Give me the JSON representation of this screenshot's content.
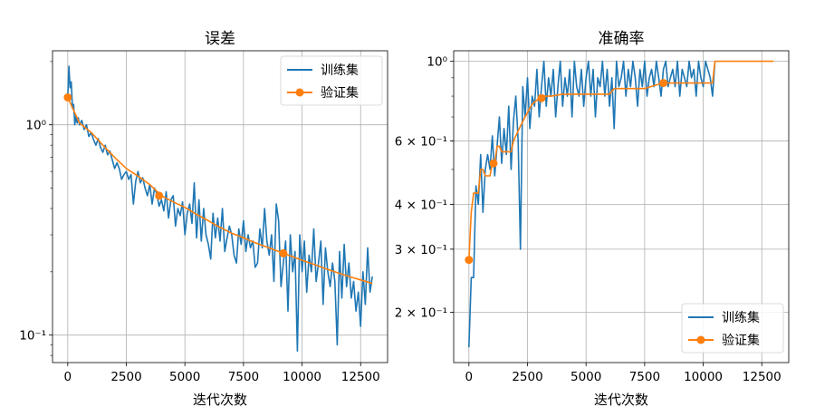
{
  "colors": {
    "train": "#1f77b4",
    "val": "#ff7f0e",
    "grid": "#b0b0b0"
  },
  "chart_data": [
    {
      "type": "line",
      "title": "误差",
      "xlabel": "迭代次数",
      "ylabel": "",
      "yscale": "log",
      "xlim": [
        -650,
        13650
      ],
      "ylim": [
        0.074,
        2.25
      ],
      "grid": true,
      "legend_position": "top-right",
      "x_ticks": [
        0,
        2500,
        5000,
        7500,
        10000,
        12500
      ],
      "x_tick_labels": [
        "0",
        "2500",
        "5000",
        "7500",
        "10000",
        "12500"
      ],
      "y_ticks": [
        1.0,
        0.1
      ],
      "y_tick_labels": [
        "10⁰",
        "10⁻¹"
      ],
      "series": [
        {
          "name": "训练集",
          "x": [
            0,
            50,
            100,
            150,
            200,
            250,
            300,
            350,
            400,
            450,
            500,
            600,
            700,
            800,
            900,
            1000,
            1100,
            1200,
            1300,
            1400,
            1500,
            1600,
            1700,
            1800,
            1900,
            2000,
            2100,
            2200,
            2300,
            2400,
            2500,
            2600,
            2700,
            2800,
            2900,
            3000,
            3100,
            3200,
            3300,
            3400,
            3500,
            3600,
            3700,
            3800,
            3900,
            4000,
            4100,
            4200,
            4300,
            4400,
            4500,
            4600,
            4700,
            4800,
            4900,
            5000,
            5100,
            5200,
            5300,
            5400,
            5500,
            5600,
            5700,
            5800,
            5900,
            6000,
            6100,
            6200,
            6300,
            6400,
            6500,
            6600,
            6700,
            6800,
            6900,
            7000,
            7100,
            7200,
            7300,
            7400,
            7500,
            7600,
            7700,
            7800,
            7900,
            8000,
            8100,
            8200,
            8300,
            8400,
            8500,
            8600,
            8700,
            8800,
            8900,
            9000,
            9100,
            9200,
            9300,
            9400,
            9500,
            9600,
            9700,
            9800,
            9900,
            10000,
            10100,
            10200,
            10300,
            10400,
            10500,
            10600,
            10700,
            10800,
            10900,
            11000,
            11100,
            11200,
            11300,
            11400,
            11500,
            11600,
            11700,
            11800,
            11900,
            12000,
            12100,
            12200,
            12300,
            12400,
            12500,
            12600,
            12700,
            12800,
            12900,
            13000
          ],
          "values": [
            1.35,
            1.9,
            1.5,
            1.6,
            1.2,
            1.25,
            1.0,
            1.1,
            1.02,
            1.08,
            1.0,
            1.05,
            0.95,
            1.0,
            0.88,
            0.92,
            0.85,
            0.8,
            0.86,
            0.78,
            0.74,
            0.8,
            0.72,
            0.75,
            0.68,
            0.62,
            0.66,
            0.62,
            0.55,
            0.58,
            0.6,
            0.55,
            0.58,
            0.42,
            0.54,
            0.6,
            0.53,
            0.56,
            0.5,
            0.46,
            0.52,
            0.42,
            0.5,
            0.47,
            0.41,
            0.44,
            0.39,
            0.48,
            0.36,
            0.44,
            0.46,
            0.33,
            0.4,
            0.37,
            0.43,
            0.3,
            0.38,
            0.42,
            0.34,
            0.53,
            0.29,
            0.44,
            0.28,
            0.4,
            0.3,
            0.27,
            0.23,
            0.38,
            0.29,
            0.36,
            0.28,
            0.4,
            0.25,
            0.29,
            0.33,
            0.3,
            0.24,
            0.22,
            0.32,
            0.27,
            0.35,
            0.25,
            0.3,
            0.26,
            0.28,
            0.21,
            0.22,
            0.32,
            0.26,
            0.4,
            0.28,
            0.24,
            0.3,
            0.18,
            0.42,
            0.35,
            0.17,
            0.22,
            0.28,
            0.13,
            0.3,
            0.2,
            0.25,
            0.084,
            0.3,
            0.2,
            0.28,
            0.16,
            0.24,
            0.2,
            0.32,
            0.18,
            0.22,
            0.28,
            0.14,
            0.26,
            0.2,
            0.17,
            0.22,
            0.18,
            0.09,
            0.25,
            0.15,
            0.27,
            0.17,
            0.22,
            0.15,
            0.18,
            0.13,
            0.16,
            0.11,
            0.2,
            0.14,
            0.26,
            0.16,
            0.19
          ],
          "marker": "none"
        },
        {
          "name": "验证集",
          "x": [
            0,
            500,
            1000,
            1500,
            2000,
            2500,
            3000,
            3500,
            4000,
            4500,
            5000,
            5500,
            6000,
            6500,
            7000,
            7500,
            8000,
            8500,
            9000,
            9500,
            10000,
            10500,
            11000,
            11500,
            12000,
            12500,
            13000
          ],
          "values": [
            1.35,
            1.02,
            0.92,
            0.8,
            0.7,
            0.62,
            0.57,
            0.52,
            0.46,
            0.43,
            0.405,
            0.375,
            0.35,
            0.325,
            0.305,
            0.29,
            0.275,
            0.262,
            0.25,
            0.238,
            0.227,
            0.217,
            0.207,
            0.198,
            0.19,
            0.183,
            0.176
          ],
          "marker_points": [
            {
              "x": 0,
              "y": 1.35
            },
            {
              "x": 3900,
              "y": 0.46
            },
            {
              "x": 9200,
              "y": 0.245
            }
          ]
        }
      ]
    },
    {
      "type": "line",
      "title": "准确率",
      "xlabel": "迭代次数",
      "ylabel": "",
      "yscale": "log",
      "xlim": [
        -650,
        13650
      ],
      "ylim": [
        0.145,
        1.07
      ],
      "grid": true,
      "legend_position": "bottom-right",
      "x_ticks": [
        0,
        2500,
        5000,
        7500,
        10000,
        12500
      ],
      "x_tick_labels": [
        "0",
        "2500",
        "5000",
        "7500",
        "10000",
        "12500"
      ],
      "y_ticks": [
        1.0,
        0.6,
        0.4,
        0.3,
        0.2
      ],
      "y_tick_labels": [
        "10⁰",
        "6 × 10⁻¹",
        "4 × 10⁻¹",
        "3 × 10⁻¹",
        "2 × 10⁻¹"
      ],
      "series": [
        {
          "name": "训练集",
          "x": [
            0,
            100,
            200,
            300,
            400,
            500,
            600,
            700,
            800,
            900,
            1000,
            1100,
            1200,
            1300,
            1400,
            1500,
            1600,
            1700,
            1800,
            1900,
            2000,
            2100,
            2200,
            2300,
            2400,
            2500,
            2600,
            2700,
            2800,
            2900,
            3000,
            3100,
            3200,
            3300,
            3400,
            3500,
            3600,
            3700,
            3800,
            3900,
            4000,
            4100,
            4200,
            4300,
            4400,
            4500,
            4600,
            4700,
            4800,
            4900,
            5000,
            5100,
            5200,
            5300,
            5400,
            5500,
            5600,
            5700,
            5800,
            5900,
            6000,
            6100,
            6200,
            6300,
            6400,
            6500,
            6600,
            6700,
            6800,
            6900,
            7000,
            7100,
            7200,
            7300,
            7400,
            7500,
            7600,
            7700,
            7800,
            7900,
            8000,
            8100,
            8200,
            8300,
            8400,
            8500,
            8600,
            8700,
            8800,
            8900,
            9000,
            9100,
            9200,
            9300,
            9400,
            9500,
            9600,
            9700,
            9800,
            9900,
            10000,
            10100,
            10200,
            10300,
            10400,
            10500
          ],
          "values": [
            0.16,
            0.25,
            0.25,
            0.45,
            0.4,
            0.55,
            0.38,
            0.5,
            0.55,
            0.5,
            0.62,
            0.48,
            0.58,
            0.7,
            0.52,
            0.65,
            0.55,
            0.75,
            0.5,
            0.68,
            0.8,
            0.6,
            0.3,
            0.85,
            0.7,
            0.9,
            0.65,
            0.8,
            0.75,
            0.95,
            0.7,
            0.85,
            1.0,
            0.75,
            0.9,
            0.8,
            0.95,
            0.7,
            0.85,
            1.0,
            0.75,
            0.9,
            0.8,
            0.95,
            0.7,
            1.0,
            0.85,
            0.8,
            0.95,
            0.75,
            0.9,
            1.0,
            0.8,
            0.95,
            0.7,
            0.9,
            0.85,
            1.0,
            0.8,
            0.95,
            0.75,
            0.9,
            0.65,
            1.0,
            0.85,
            0.9,
            1.0,
            0.8,
            0.95,
            0.85,
            1.0,
            0.9,
            0.75,
            0.95,
            0.85,
            1.0,
            0.8,
            0.9,
            0.95,
            0.85,
            1.0,
            0.9,
            0.8,
            0.95,
            1.0,
            0.85,
            0.9,
            0.95,
            0.85,
            1.0,
            0.8,
            0.95,
            0.9,
            0.85,
            1.0,
            0.9,
            0.95,
            0.8,
            1.0,
            0.9,
            0.85,
            1.0,
            0.95,
            0.9,
            0.8,
            1.0
          ],
          "marker": "none"
        },
        {
          "name": "验证集",
          "x": [
            0,
            100,
            200,
            300,
            400,
            500,
            600,
            700,
            800,
            900,
            1000,
            1100,
            1200,
            1300,
            1400,
            1500,
            1600,
            1700,
            1800,
            1900,
            2000,
            2100,
            2200,
            2300,
            2400,
            2500,
            2600,
            2700,
            2800,
            2900,
            3000,
            3200,
            3500,
            4000,
            4500,
            5000,
            5500,
            6000,
            6200,
            6500,
            7000,
            7500,
            8000,
            8300,
            8600,
            9000,
            9500,
            10000,
            10400,
            10500,
            11000,
            11500,
            12000,
            12500,
            13000
          ],
          "values": [
            0.28,
            0.38,
            0.43,
            0.43,
            0.43,
            0.5,
            0.5,
            0.48,
            0.48,
            0.48,
            0.52,
            0.52,
            0.58,
            0.58,
            0.56,
            0.56,
            0.56,
            0.56,
            0.56,
            0.6,
            0.62,
            0.64,
            0.66,
            0.68,
            0.7,
            0.72,
            0.74,
            0.76,
            0.77,
            0.78,
            0.79,
            0.8,
            0.8,
            0.81,
            0.81,
            0.81,
            0.81,
            0.81,
            0.84,
            0.84,
            0.84,
            0.84,
            0.86,
            0.87,
            0.87,
            0.87,
            0.87,
            0.87,
            0.87,
            1.0,
            1.0,
            1.0,
            1.0,
            1.0,
            1.0
          ],
          "marker_points": [
            {
              "x": 0,
              "y": 0.28
            },
            {
              "x": 1050,
              "y": 0.52
            },
            {
              "x": 3100,
              "y": 0.79
            },
            {
              "x": 8300,
              "y": 0.87
            }
          ]
        }
      ]
    }
  ]
}
